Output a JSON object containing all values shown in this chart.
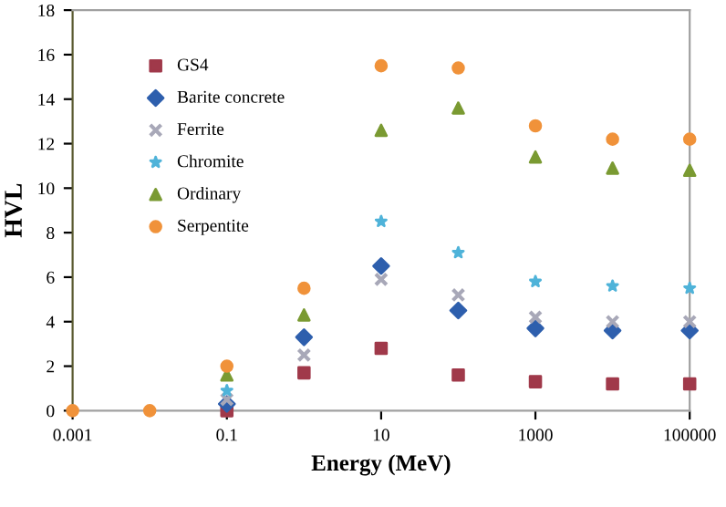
{
  "chart_data": {
    "type": "scatter",
    "xlabel": "Energy (MeV)",
    "ylabel": "HVL",
    "log": "x",
    "xlim": [
      0.001,
      100000
    ],
    "xticks": [
      {
        "value": 0.001,
        "label": "0.001"
      },
      {
        "value": 0.1,
        "label": "0.1"
      },
      {
        "value": 10,
        "label": "10"
      },
      {
        "value": 1000,
        "label": "1000"
      },
      {
        "value": 100000,
        "label": "100000"
      }
    ],
    "ylim": [
      0,
      18
    ],
    "yticks": [
      0,
      2,
      4,
      6,
      8,
      10,
      12,
      14,
      16,
      18
    ],
    "grid": false,
    "legend": "top left",
    "x": [
      0.001,
      0.01,
      0.1,
      1,
      10,
      100,
      1000,
      10000,
      100000
    ],
    "series": [
      {
        "name": "GS4",
        "color": "#a0394a",
        "marker": "square",
        "values": [
          null,
          null,
          0,
          1.7,
          2.8,
          1.6,
          1.3,
          1.2,
          1.2
        ]
      },
      {
        "name": "Barite concrete",
        "color": "#2e5fad",
        "marker": "diamond",
        "values": [
          null,
          null,
          0.3,
          3.3,
          6.5,
          4.5,
          3.7,
          3.6,
          3.6
        ]
      },
      {
        "name": "Ferrite",
        "color": "#a8a8b8",
        "marker": "cross",
        "values": [
          null,
          null,
          0.5,
          2.5,
          5.9,
          5.2,
          4.2,
          4.0,
          4.0
        ]
      },
      {
        "name": "Chromite",
        "color": "#4fb3d9",
        "marker": "star",
        "values": [
          null,
          null,
          0.9,
          null,
          8.5,
          7.1,
          5.8,
          5.6,
          5.5
        ]
      },
      {
        "name": "Ordinary",
        "color": "#7a9a32",
        "marker": "triangle",
        "values": [
          null,
          null,
          1.6,
          4.3,
          12.6,
          13.6,
          11.4,
          10.9,
          10.8
        ]
      },
      {
        "name": "Serpentite",
        "color": "#f0923a",
        "marker": "circle",
        "values": [
          0,
          0,
          2.0,
          5.5,
          15.5,
          15.4,
          12.8,
          12.2,
          12.2
        ]
      }
    ]
  }
}
